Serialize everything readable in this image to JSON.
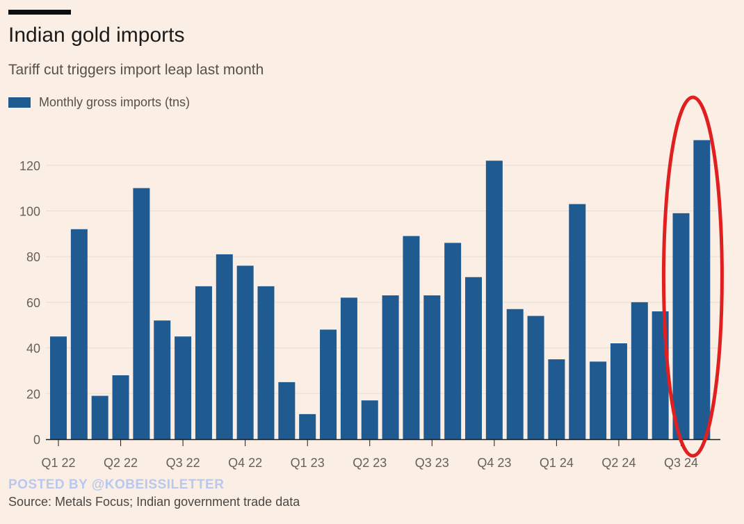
{
  "header": {
    "title": "Indian gold imports",
    "subtitle": "Tariff cut triggers import leap last month"
  },
  "legend": {
    "label": "Monthly gross imports (tns)"
  },
  "colors": {
    "bar": "#1f5a91",
    "background": "#fbeee4",
    "gridline": "#e8ddd3",
    "highlight": "#e02020",
    "axis_text": "#66605a"
  },
  "watermark": "POSTED BY @KOBEISSILETTER",
  "source": "Source: Metals Focus; Indian government trade data",
  "chart_data": {
    "type": "bar",
    "title": "Indian gold imports",
    "subtitle": "Tariff cut triggers import leap last month",
    "legend": [
      "Monthly gross imports (tns)"
    ],
    "legend_position": "top-left",
    "grid": true,
    "ylim": [
      0,
      130
    ],
    "yticks": [
      0,
      20,
      40,
      60,
      80,
      100,
      120
    ],
    "xtick_labels": [
      "Q1 22",
      "Q2 22",
      "Q3 22",
      "Q4 22",
      "Q1 23",
      "Q2 23",
      "Q3 23",
      "Q4 23",
      "Q1 24",
      "Q2 24",
      "Q3 24"
    ],
    "series": [
      {
        "name": "Monthly gross imports (tns)",
        "values": [
          45,
          92,
          19,
          28,
          110,
          52,
          45,
          67,
          81,
          76,
          67,
          25,
          11,
          48,
          62,
          17,
          63,
          89,
          63,
          86,
          71,
          122,
          57,
          54,
          35,
          103,
          34,
          42,
          60,
          56,
          99,
          131
        ]
      }
    ],
    "annotations": [
      {
        "type": "ellipse",
        "color": "red",
        "highlights_last_n_bars": 2
      }
    ]
  }
}
